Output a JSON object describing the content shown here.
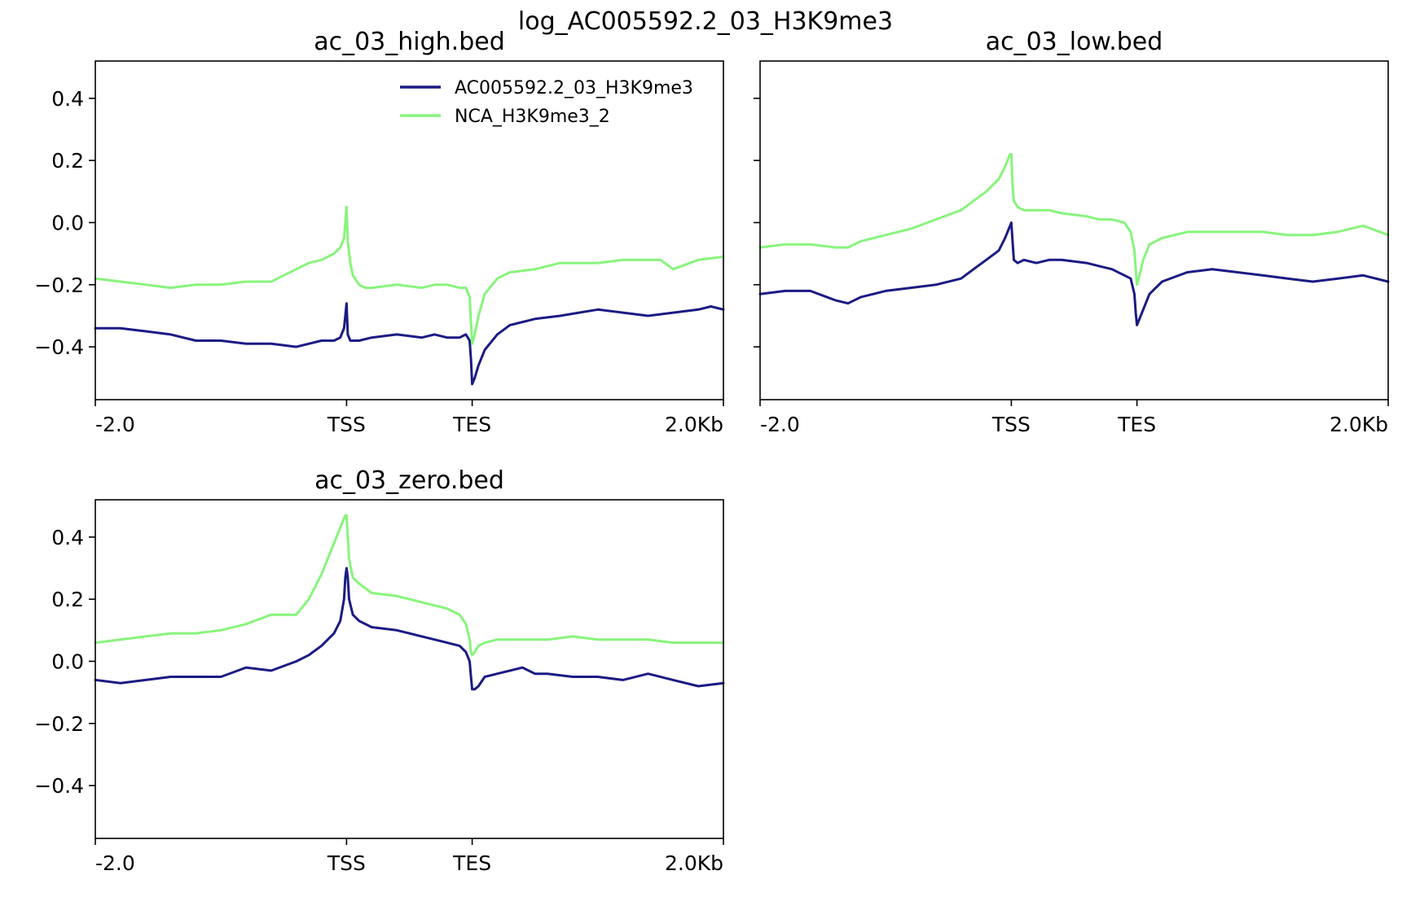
{
  "suptitle": "log_AC005592.2_03_H3K9me3",
  "colors": {
    "sample": "#1b1b84",
    "control": "#88f47c"
  },
  "legend": {
    "placement": "upper-right",
    "entries": [
      {
        "name": "AC005592.2_03_H3K9me3",
        "color": "#1b1b84"
      },
      {
        "name": "NCA_H3K9me3_2",
        "color": "#88f47c"
      }
    ]
  },
  "chart_data": [
    {
      "type": "line",
      "title": "ac_03_high.bed",
      "xlabel": "",
      "ylabel": "",
      "xlim": [
        0,
        500
      ],
      "ylim": [
        -0.57,
        0.52
      ],
      "x_ticks": [
        0,
        200,
        300,
        500
      ],
      "x_tick_labels": [
        "-2.0",
        "TSS",
        "TES",
        "2.0Kb"
      ],
      "y_ticks": [
        -0.4,
        -0.2,
        0.0,
        0.2,
        0.4
      ],
      "y_tick_labels": [
        "−0.4",
        "−0.2",
        "0.0",
        "0.2",
        "0.4"
      ],
      "show_y_tick_labels": true,
      "series": [
        {
          "name": "AC005592.2_03_H3K9me3",
          "color": "#1b1b84",
          "x": [
            0,
            20,
            40,
            60,
            80,
            100,
            120,
            140,
            160,
            170,
            180,
            190,
            195,
            198,
            199,
            200,
            201,
            203,
            210,
            220,
            240,
            260,
            270,
            280,
            290,
            295,
            298,
            299,
            300,
            302,
            305,
            310,
            320,
            330,
            350,
            370,
            400,
            420,
            440,
            460,
            480,
            490,
            500
          ],
          "y": [
            -0.34,
            -0.34,
            -0.35,
            -0.36,
            -0.38,
            -0.38,
            -0.39,
            -0.39,
            -0.4,
            -0.39,
            -0.38,
            -0.38,
            -0.37,
            -0.34,
            -0.3,
            -0.26,
            -0.36,
            -0.38,
            -0.38,
            -0.37,
            -0.36,
            -0.37,
            -0.36,
            -0.37,
            -0.37,
            -0.36,
            -0.38,
            -0.44,
            -0.52,
            -0.5,
            -0.46,
            -0.41,
            -0.36,
            -0.33,
            -0.31,
            -0.3,
            -0.28,
            -0.29,
            -0.3,
            -0.29,
            -0.28,
            -0.27,
            -0.28
          ]
        },
        {
          "name": "NCA_H3K9me3_2",
          "color": "#88f47c",
          "x": [
            0,
            20,
            40,
            60,
            80,
            100,
            120,
            140,
            150,
            160,
            170,
            180,
            190,
            195,
            198,
            199,
            200,
            201,
            203,
            205,
            210,
            215,
            220,
            240,
            260,
            270,
            280,
            290,
            295,
            298,
            299,
            300,
            302,
            305,
            310,
            320,
            330,
            350,
            370,
            400,
            420,
            450,
            460,
            480,
            500
          ],
          "y": [
            -0.18,
            -0.19,
            -0.2,
            -0.21,
            -0.2,
            -0.2,
            -0.19,
            -0.19,
            -0.17,
            -0.15,
            -0.13,
            -0.12,
            -0.1,
            -0.08,
            -0.05,
            0.0,
            0.05,
            -0.06,
            -0.13,
            -0.17,
            -0.2,
            -0.21,
            -0.21,
            -0.2,
            -0.21,
            -0.2,
            -0.2,
            -0.21,
            -0.21,
            -0.24,
            -0.32,
            -0.39,
            -0.36,
            -0.3,
            -0.23,
            -0.18,
            -0.16,
            -0.15,
            -0.13,
            -0.13,
            -0.12,
            -0.12,
            -0.15,
            -0.12,
            -0.11
          ]
        }
      ]
    },
    {
      "type": "line",
      "title": "ac_03_low.bed",
      "xlabel": "",
      "ylabel": "",
      "xlim": [
        0,
        500
      ],
      "ylim": [
        -0.57,
        0.52
      ],
      "x_ticks": [
        0,
        200,
        300,
        500
      ],
      "x_tick_labels": [
        "-2.0",
        "TSS",
        "TES",
        "2.0Kb"
      ],
      "y_ticks": [
        -0.4,
        -0.2,
        0.0,
        0.2,
        0.4
      ],
      "y_tick_labels": [
        "−0.4",
        "−0.2",
        "0.0",
        "0.2",
        "0.4"
      ],
      "show_y_tick_labels": false,
      "series": [
        {
          "name": "AC005592.2_03_H3K9me3",
          "color": "#1b1b84",
          "x": [
            0,
            20,
            40,
            60,
            70,
            80,
            100,
            120,
            140,
            160,
            170,
            180,
            190,
            195,
            198,
            199,
            200,
            201,
            202,
            205,
            210,
            220,
            230,
            240,
            260,
            270,
            280,
            290,
            295,
            298,
            299,
            300,
            302,
            305,
            310,
            320,
            340,
            360,
            380,
            400,
            420,
            440,
            460,
            480,
            500
          ],
          "y": [
            -0.23,
            -0.22,
            -0.22,
            -0.25,
            -0.26,
            -0.24,
            -0.22,
            -0.21,
            -0.2,
            -0.18,
            -0.15,
            -0.12,
            -0.09,
            -0.05,
            -0.02,
            -0.01,
            0.0,
            -0.06,
            -0.12,
            -0.13,
            -0.12,
            -0.13,
            -0.12,
            -0.12,
            -0.13,
            -0.14,
            -0.15,
            -0.17,
            -0.18,
            -0.23,
            -0.29,
            -0.33,
            -0.31,
            -0.28,
            -0.23,
            -0.19,
            -0.16,
            -0.15,
            -0.16,
            -0.17,
            -0.18,
            -0.19,
            -0.18,
            -0.17,
            -0.19
          ]
        },
        {
          "name": "NCA_H3K9me3_2",
          "color": "#88f47c",
          "x": [
            0,
            20,
            40,
            60,
            70,
            80,
            100,
            120,
            140,
            160,
            170,
            180,
            190,
            195,
            198,
            199,
            200,
            201,
            202,
            205,
            210,
            220,
            230,
            240,
            260,
            270,
            280,
            290,
            295,
            298,
            299,
            300,
            302,
            305,
            310,
            320,
            340,
            360,
            380,
            400,
            420,
            440,
            460,
            480,
            500
          ],
          "y": [
            -0.08,
            -0.07,
            -0.07,
            -0.08,
            -0.08,
            -0.06,
            -0.04,
            -0.02,
            0.01,
            0.04,
            0.07,
            0.1,
            0.14,
            0.18,
            0.21,
            0.22,
            0.22,
            0.12,
            0.07,
            0.05,
            0.04,
            0.04,
            0.04,
            0.03,
            0.02,
            0.01,
            0.01,
            0.0,
            -0.03,
            -0.09,
            -0.15,
            -0.2,
            -0.17,
            -0.12,
            -0.07,
            -0.05,
            -0.03,
            -0.03,
            -0.03,
            -0.03,
            -0.04,
            -0.04,
            -0.03,
            -0.01,
            -0.04
          ]
        }
      ]
    },
    {
      "type": "line",
      "title": "ac_03_zero.bed",
      "xlabel": "",
      "ylabel": "",
      "xlim": [
        0,
        500
      ],
      "ylim": [
        -0.57,
        0.52
      ],
      "x_ticks": [
        0,
        200,
        300,
        500
      ],
      "x_tick_labels": [
        "-2.0",
        "TSS",
        "TES",
        "2.0Kb"
      ],
      "y_ticks": [
        -0.4,
        -0.2,
        0.0,
        0.2,
        0.4
      ],
      "y_tick_labels": [
        "−0.4",
        "−0.2",
        "0.0",
        "0.2",
        "0.4"
      ],
      "show_y_tick_labels": true,
      "series": [
        {
          "name": "AC005592.2_03_H3K9me3",
          "color": "#1b1b84",
          "x": [
            0,
            20,
            40,
            60,
            80,
            100,
            120,
            140,
            160,
            170,
            180,
            190,
            195,
            198,
            199,
            200,
            201,
            202,
            205,
            210,
            220,
            240,
            260,
            270,
            280,
            290,
            295,
            298,
            299,
            300,
            302,
            305,
            310,
            320,
            340,
            350,
            360,
            380,
            400,
            420,
            440,
            460,
            480,
            500
          ],
          "y": [
            -0.06,
            -0.07,
            -0.06,
            -0.05,
            -0.05,
            -0.05,
            -0.02,
            -0.03,
            0.0,
            0.02,
            0.05,
            0.09,
            0.13,
            0.2,
            0.27,
            0.3,
            0.27,
            0.2,
            0.15,
            0.13,
            0.11,
            0.1,
            0.08,
            0.07,
            0.06,
            0.05,
            0.03,
            0.0,
            -0.05,
            -0.09,
            -0.09,
            -0.08,
            -0.05,
            -0.04,
            -0.02,
            -0.04,
            -0.04,
            -0.05,
            -0.05,
            -0.06,
            -0.04,
            -0.06,
            -0.08,
            -0.07
          ]
        },
        {
          "name": "NCA_H3K9me3_2",
          "color": "#88f47c",
          "x": [
            0,
            20,
            40,
            60,
            80,
            100,
            120,
            140,
            160,
            170,
            180,
            190,
            195,
            198,
            199,
            200,
            201,
            202,
            205,
            210,
            220,
            240,
            260,
            270,
            280,
            290,
            295,
            298,
            299,
            300,
            302,
            305,
            310,
            320,
            340,
            360,
            380,
            400,
            420,
            440,
            460,
            480,
            500
          ],
          "y": [
            0.06,
            0.07,
            0.08,
            0.09,
            0.09,
            0.1,
            0.12,
            0.15,
            0.15,
            0.2,
            0.28,
            0.38,
            0.43,
            0.46,
            0.47,
            0.47,
            0.4,
            0.33,
            0.27,
            0.25,
            0.22,
            0.21,
            0.19,
            0.18,
            0.17,
            0.15,
            0.12,
            0.07,
            0.03,
            0.02,
            0.03,
            0.05,
            0.06,
            0.07,
            0.07,
            0.07,
            0.08,
            0.07,
            0.07,
            0.07,
            0.06,
            0.06,
            0.06
          ]
        }
      ]
    }
  ]
}
